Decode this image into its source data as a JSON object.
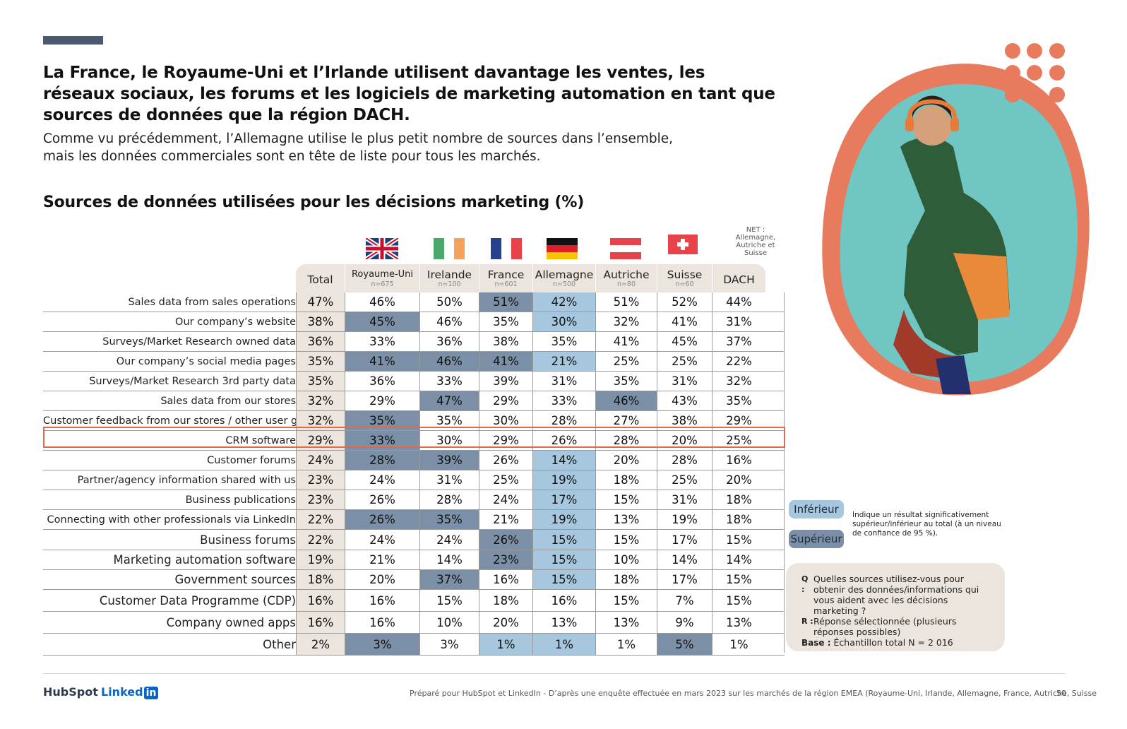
{
  "headline": "La France, le Royaume-Uni et l’Irlande utilisent davantage les ventes, les réseaux sociaux, les forums et les logiciels de marketing automation en tant que sources de données que la région DACH.",
  "subtitle_line1": "Comme vu précédemment, l’Allemagne utilise le plus petit nombre de sources dans l’ensemble,",
  "subtitle_line2": "mais les données commerciales sont en tête de liste pour tous les marchés.",
  "chart_title": "Sources de données utilisées pour les décisions marketing (%)",
  "net_note": "NET : Allemagne, Autriche et Suisse",
  "columns": [
    {
      "name": "Total",
      "n": ""
    },
    {
      "name": "Royaume-Uni",
      "n": "n=675"
    },
    {
      "name": "Irelande",
      "n": "n=100"
    },
    {
      "name": "France",
      "n": "n=601"
    },
    {
      "name": "Allemagne",
      "n": "n=500"
    },
    {
      "name": "Autriche",
      "n": "n=80"
    },
    {
      "name": "Suisse",
      "n": "n=60"
    },
    {
      "name": "DACH",
      "n": ""
    }
  ],
  "rows": [
    {
      "label": "Sales data from sales operations",
      "values": [
        "47%",
        "46%",
        "50%",
        "51%",
        "42%",
        "51%",
        "52%",
        "44%"
      ],
      "sig": [
        "",
        "",
        "",
        "S",
        "I",
        "",
        "",
        ""
      ]
    },
    {
      "label": "Our company’s website",
      "values": [
        "38%",
        "45%",
        "46%",
        "35%",
        "30%",
        "32%",
        "41%",
        "31%"
      ],
      "sig": [
        "",
        "S",
        "",
        "",
        "I",
        "",
        "",
        ""
      ]
    },
    {
      "label": "Surveys/Market Research owned data",
      "values": [
        "36%",
        "33%",
        "36%",
        "38%",
        "35%",
        "41%",
        "45%",
        "37%"
      ],
      "sig": [
        "",
        "",
        "",
        "",
        "",
        "",
        "",
        ""
      ]
    },
    {
      "label": "Our company’s social media pages",
      "values": [
        "35%",
        "41%",
        "46%",
        "41%",
        "21%",
        "25%",
        "25%",
        "22%"
      ],
      "sig": [
        "",
        "S",
        "S",
        "S",
        "I",
        "",
        "",
        ""
      ]
    },
    {
      "label": "Surveys/Market Research 3rd party data",
      "values": [
        "35%",
        "36%",
        "33%",
        "39%",
        "31%",
        "35%",
        "31%",
        "32%"
      ],
      "sig": [
        "",
        "",
        "",
        "",
        "",
        "",
        "",
        ""
      ]
    },
    {
      "label": "Sales data from our stores",
      "values": [
        "32%",
        "29%",
        "47%",
        "29%",
        "33%",
        "46%",
        "43%",
        "35%"
      ],
      "sig": [
        "",
        "",
        "S",
        "",
        "",
        "S",
        "",
        ""
      ]
    },
    {
      "label": "Customer feedback from our stores / other user groups",
      "values": [
        "32%",
        "35%",
        "35%",
        "30%",
        "28%",
        "27%",
        "38%",
        "29%"
      ],
      "sig": [
        "",
        "S",
        "",
        "",
        "",
        "",
        "",
        ""
      ]
    },
    {
      "label": "CRM software",
      "values": [
        "29%",
        "33%",
        "30%",
        "29%",
        "26%",
        "28%",
        "20%",
        "25%"
      ],
      "sig": [
        "",
        "S",
        "",
        "",
        "",
        "",
        "",
        ""
      ]
    },
    {
      "label": "Customer forums",
      "values": [
        "24%",
        "28%",
        "39%",
        "26%",
        "14%",
        "20%",
        "28%",
        "16%"
      ],
      "sig": [
        "",
        "S",
        "S",
        "",
        "I",
        "",
        "",
        ""
      ]
    },
    {
      "label": "Partner/agency information shared with us",
      "values": [
        "23%",
        "24%",
        "31%",
        "25%",
        "19%",
        "18%",
        "25%",
        "20%"
      ],
      "sig": [
        "",
        "",
        "",
        "",
        "I",
        "",
        "",
        ""
      ]
    },
    {
      "label": "Business publications",
      "values": [
        "23%",
        "26%",
        "28%",
        "24%",
        "17%",
        "15%",
        "31%",
        "18%"
      ],
      "sig": [
        "",
        "",
        "",
        "",
        "I",
        "",
        "",
        ""
      ]
    },
    {
      "label": "Connecting with other professionals via LinkedIn",
      "values": [
        "22%",
        "26%",
        "35%",
        "21%",
        "19%",
        "13%",
        "19%",
        "18%"
      ],
      "sig": [
        "",
        "S",
        "S",
        "",
        "I",
        "",
        "",
        ""
      ]
    },
    {
      "label": "Business forums",
      "values": [
        "22%",
        "24%",
        "24%",
        "26%",
        "15%",
        "15%",
        "17%",
        "15%"
      ],
      "sig": [
        "",
        "",
        "",
        "S",
        "I",
        "",
        "",
        ""
      ]
    },
    {
      "label": "Marketing automation software",
      "values": [
        "19%",
        "21%",
        "14%",
        "23%",
        "15%",
        "10%",
        "14%",
        "14%"
      ],
      "sig": [
        "",
        "",
        "",
        "S",
        "I",
        "",
        "",
        ""
      ]
    },
    {
      "label": "Government sources",
      "values": [
        "18%",
        "20%",
        "37%",
        "16%",
        "15%",
        "18%",
        "17%",
        "15%"
      ],
      "sig": [
        "",
        "",
        "S",
        "",
        "I",
        "",
        "",
        ""
      ]
    },
    {
      "label": "Customer Data Programme (CDP)",
      "values": [
        "16%",
        "16%",
        "15%",
        "18%",
        "16%",
        "15%",
        "7%",
        "15%"
      ],
      "sig": [
        "",
        "",
        "",
        "",
        "",
        "",
        "",
        ""
      ]
    },
    {
      "label": "Company owned apps",
      "values": [
        "16%",
        "16%",
        "10%",
        "20%",
        "13%",
        "13%",
        "9%",
        "13%"
      ],
      "sig": [
        "",
        "",
        "",
        "",
        "",
        "",
        "",
        ""
      ]
    },
    {
      "label": "Other",
      "values": [
        "2%",
        "3%",
        "3%",
        "1%",
        "1%",
        "1%",
        "5%",
        "1%"
      ],
      "sig": [
        "",
        "S",
        "",
        "I",
        "I",
        "",
        "S",
        ""
      ]
    }
  ],
  "legend": {
    "inferior": "Inférieur",
    "superior": "Supérieur",
    "note": "Indique un résultat significativement supérieur/inférieur au total (à un niveau de confiance de 95 %).",
    "inferior_color": "#a7c7de",
    "superior_color": "#7b8fa6"
  },
  "qbox": {
    "q_key": "Q :",
    "q_text": "Quelles sources utilisez-vous pour obtenir des données/informations qui vous aident avec les décisions marketing ?",
    "r_key": "R :",
    "r_text": "Réponse sélectionnée (plusieurs réponses possibles)",
    "base_key": "Base :",
    "base_text": "Échantillon total N = 2 016"
  },
  "footer": {
    "hubspot": "HubSpot",
    "linkedin_text": "Linked",
    "linkedin_in": "in",
    "note": "Préparé pour HubSpot et LinkedIn - D’après une enquête effectuée en mars 2023 sur les marchés de la région EMEA (Royaume-Uni, Irlande, Allemagne, France, Autriche, Suisse",
    "page": "50"
  },
  "colors": {
    "accent": "#e56a4a",
    "header_bg": "#ebe5dd",
    "bar": "#4a5a6e"
  }
}
